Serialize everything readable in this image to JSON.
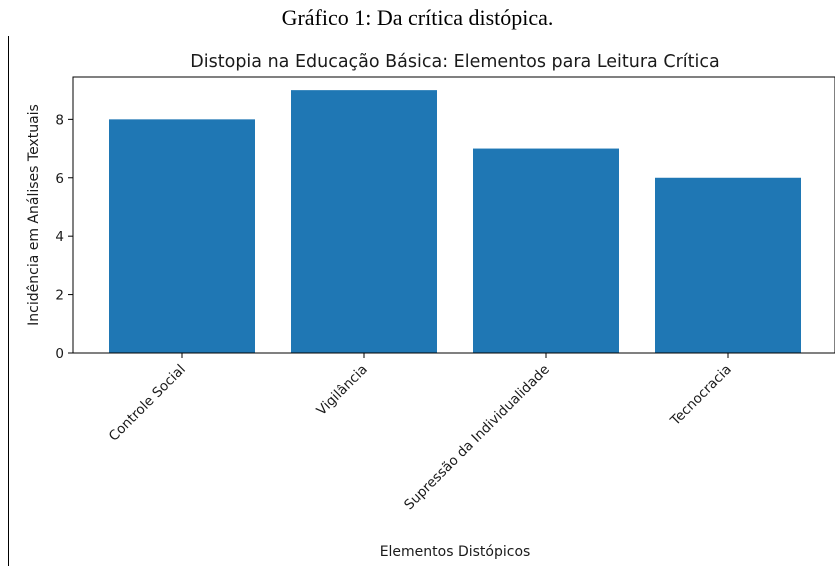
{
  "figure": {
    "caption": "Gráfico 1: Da crítica distópica."
  },
  "chart_data": {
    "type": "bar",
    "title": "Distopia na Educação Básica: Elementos para Leitura Crítica",
    "xlabel": "Elementos Distópicos",
    "ylabel": "Incidência em Análises Textuais",
    "categories": [
      "Controle Social",
      "Vigilância",
      "Supressão da Individualidade",
      "Tecnocracia"
    ],
    "values": [
      8,
      9,
      7,
      6
    ],
    "ylim": [
      0,
      9.45
    ],
    "yticks": [
      0,
      2,
      4,
      6,
      8
    ],
    "bar_color": "#1f77b4",
    "grid": false,
    "legend": "none"
  }
}
